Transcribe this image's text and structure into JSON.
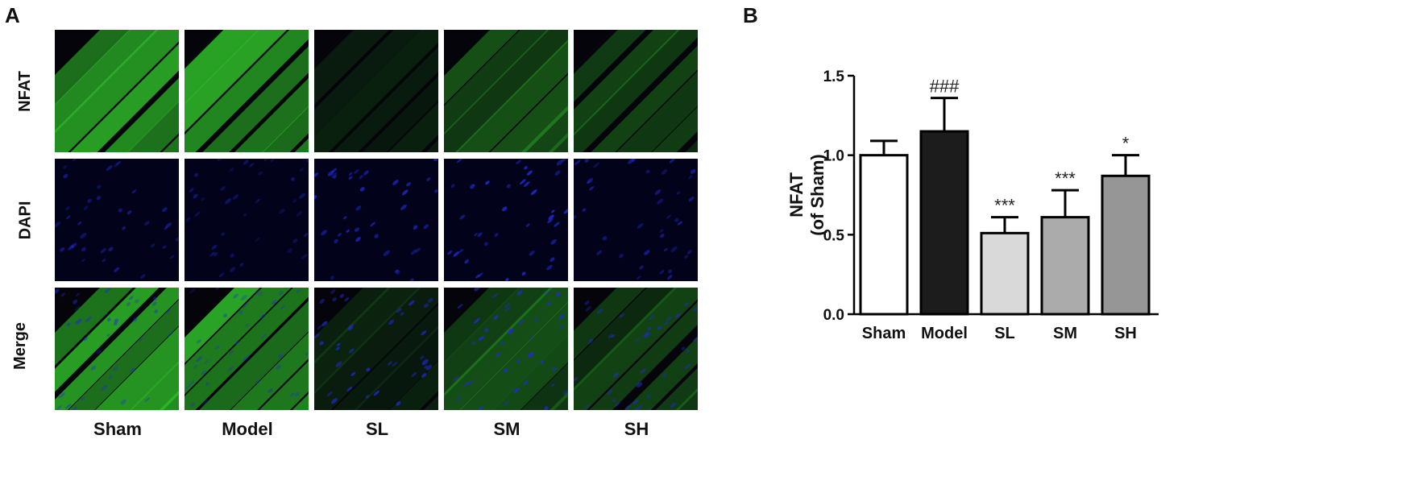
{
  "panel_a": {
    "letter": "A",
    "row_labels": [
      "NFAT",
      "DAPI",
      "Merge"
    ],
    "column_labels": [
      "Sham",
      "Model",
      "SL",
      "SM",
      "SH"
    ]
  },
  "panel_b": {
    "letter": "B"
  },
  "colors": {
    "nfat_green": "#2fbf2a",
    "dapi_blue": "#1f2bd9",
    "tissue_dark": "#04040a"
  },
  "chart_data": {
    "type": "bar",
    "categories": [
      "Sham",
      "Model",
      "SL",
      "SM",
      "SH"
    ],
    "values": [
      1.0,
      1.15,
      0.51,
      0.61,
      0.87
    ],
    "errors": [
      0.09,
      0.21,
      0.1,
      0.17,
      0.13
    ],
    "annotations": [
      "",
      "###",
      "***",
      "***",
      "*"
    ],
    "bar_colors": [
      "#ffffff",
      "#1c1c1c",
      "#d9d9d9",
      "#ababab",
      "#969696"
    ],
    "ylabel_lines": [
      "NFAT",
      "(of Sham)"
    ],
    "ylim": [
      0,
      1.5
    ],
    "yticks": [
      0.0,
      0.5,
      1.0,
      1.5
    ],
    "ytick_labels": [
      "0.0",
      "0.5",
      "1.0",
      "1.5"
    ],
    "grid": false,
    "legend": "none"
  }
}
